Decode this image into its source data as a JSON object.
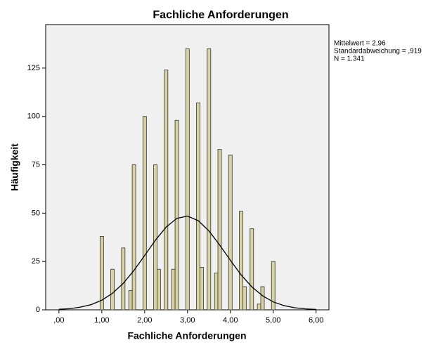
{
  "chart_data": {
    "type": "histogram",
    "title": "Fachliche Anforderungen",
    "x_label": "Fachliche Anforderungen",
    "y_label": "Häufigkeit",
    "x": [
      1,
      1.25,
      1.5,
      1.67,
      1.75,
      2,
      2.25,
      2.33,
      2.5,
      2.67,
      2.75,
      3,
      3.25,
      3.33,
      3.5,
      3.67,
      3.75,
      4,
      4.25,
      4.33,
      4.5,
      4.67,
      4.75,
      5
    ],
    "values": [
      38,
      21,
      32,
      10,
      75,
      100,
      75,
      21,
      124,
      21,
      98,
      135,
      107,
      22,
      135,
      19,
      83,
      80,
      51,
      12,
      42,
      3,
      12,
      25
    ],
    "color": "#d8d3a0",
    "curve": {
      "x": [
        0,
        0.25,
        0.5,
        0.75,
        1,
        1.25,
        1.5,
        1.75,
        2,
        2.25,
        2.5,
        2.75,
        3,
        3.25,
        3.5,
        3.75,
        4,
        4.25,
        4.5,
        4.75,
        5,
        5.25,
        5.5,
        5.75,
        6
      ],
      "values": [
        0.3,
        0.6,
        1.4,
        2.7,
        5.0,
        8.6,
        13.7,
        20.4,
        28.1,
        36.0,
        42.8,
        47.3,
        48.5,
        46.1,
        40.8,
        33.5,
        25.6,
        18.1,
        11.9,
        7.3,
        4.1,
        2.2,
        1.1,
        0.5,
        0.2
      ]
    },
    "xlim": [
      -0.31,
      6.3
    ],
    "ylim": [
      0,
      147.5
    ],
    "xticks": [
      {
        "value": 0,
        "label": ",00"
      },
      {
        "value": 1,
        "label": "1,00"
      },
      {
        "value": 2,
        "label": "2,00"
      },
      {
        "value": 3,
        "label": "3,00"
      },
      {
        "value": 4,
        "label": "4,00"
      },
      {
        "value": 5,
        "label": "5,00"
      },
      {
        "value": 6,
        "label": "6,00"
      }
    ],
    "yticks": [
      0,
      25,
      50,
      75,
      100,
      125
    ],
    "annotations": [
      "Mittelwert = 2,96",
      "Standardabweichung = ,919",
      "N = 1.341"
    ]
  }
}
